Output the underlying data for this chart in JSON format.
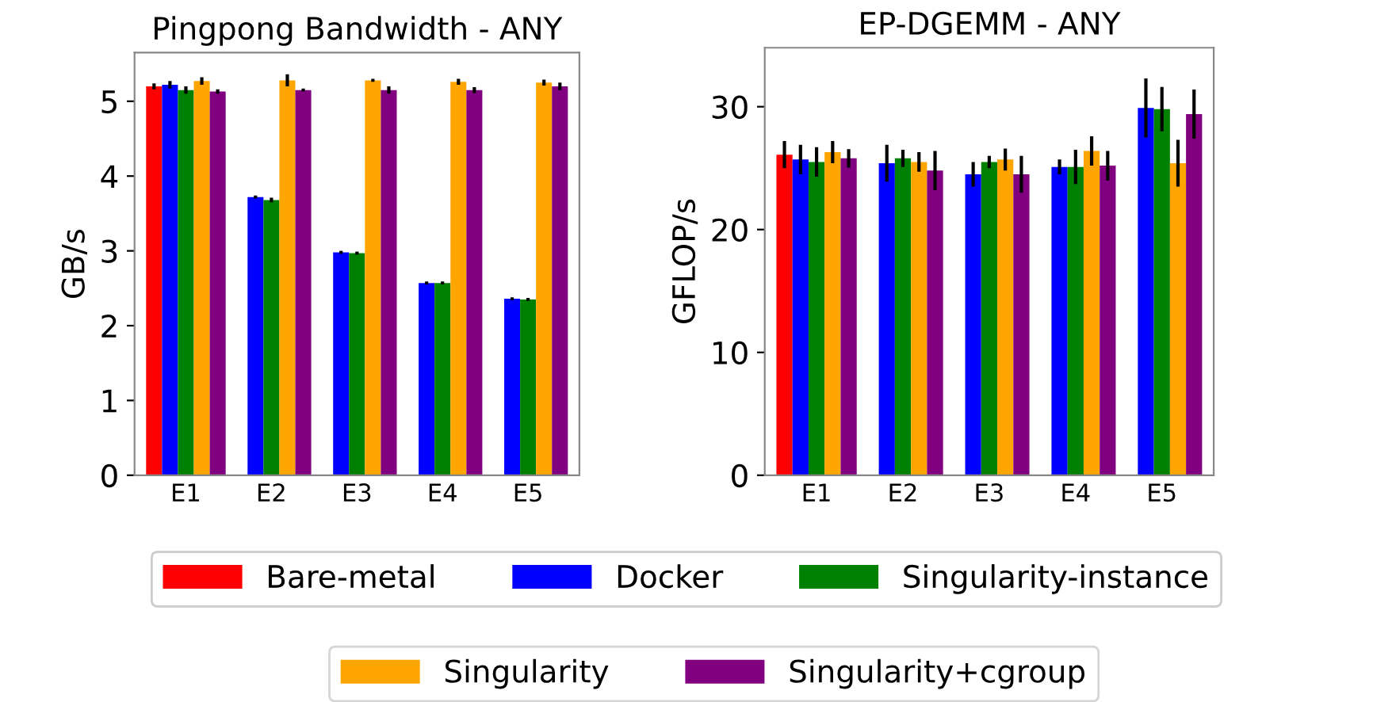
{
  "chart_data": [
    {
      "type": "bar",
      "title": "Pingpong Bandwidth - ANY",
      "ylabel": "GB/s",
      "categories": [
        "E1",
        "E2",
        "E3",
        "E4",
        "E5"
      ],
      "ylim": [
        0,
        5.65
      ],
      "yticks": [
        0,
        1,
        2,
        3,
        4,
        5
      ],
      "grid": false,
      "legend": "bottom",
      "series": [
        {
          "name": "Bare-metal",
          "color": "#ff0000",
          "values": [
            5.2,
            null,
            null,
            null,
            null
          ],
          "errors": [
            0.04,
            null,
            null,
            null,
            null
          ]
        },
        {
          "name": "Docker",
          "color": "#0000ff",
          "values": [
            5.22,
            3.72,
            2.98,
            2.57,
            2.36
          ],
          "errors": [
            0.05,
            0.02,
            0.02,
            0.02,
            0.02
          ]
        },
        {
          "name": "Singularity-instance",
          "color": "#008000",
          "values": [
            5.15,
            3.68,
            2.97,
            2.57,
            2.35
          ],
          "errors": [
            0.05,
            0.03,
            0.02,
            0.02,
            0.02
          ]
        },
        {
          "name": "Singularity",
          "color": "#ffa500",
          "values": [
            5.27,
            5.28,
            5.28,
            5.26,
            5.25
          ],
          "errors": [
            0.05,
            0.08,
            0.02,
            0.04,
            0.04
          ]
        },
        {
          "name": "Singularity+cgroup",
          "color": "#800080",
          "values": [
            5.13,
            5.15,
            5.15,
            5.15,
            5.2
          ],
          "errors": [
            0.03,
            0.02,
            0.05,
            0.04,
            0.05
          ]
        }
      ]
    },
    {
      "type": "bar",
      "title": "EP-DGEMM - ANY",
      "ylabel": "GFLOP/s",
      "categories": [
        "E1",
        "E2",
        "E3",
        "E4",
        "E5"
      ],
      "ylim": [
        0,
        34.8
      ],
      "yticks": [
        0,
        10,
        20,
        30
      ],
      "grid": false,
      "series": [
        {
          "color": "#ff0000",
          "values": [
            26.1,
            null,
            null,
            null,
            null
          ],
          "errors": [
            1.1,
            null,
            null,
            null,
            null
          ]
        },
        {
          "color": "#0000ff",
          "values": [
            25.7,
            25.4,
            24.5,
            25.1,
            29.9
          ],
          "errors": [
            1.2,
            1.5,
            1.0,
            0.6,
            2.4
          ]
        },
        {
          "color": "#008000",
          "values": [
            25.5,
            25.8,
            25.5,
            25.1,
            29.8
          ],
          "errors": [
            1.2,
            0.7,
            0.5,
            1.4,
            1.8
          ]
        },
        {
          "color": "#ffa500",
          "values": [
            26.3,
            25.5,
            25.7,
            26.4,
            25.4
          ],
          "errors": [
            0.9,
            0.8,
            0.9,
            1.2,
            1.9
          ]
        },
        {
          "color": "#800080",
          "values": [
            25.8,
            24.8,
            24.5,
            25.2,
            29.4
          ],
          "errors": [
            0.75,
            1.6,
            1.5,
            1.2,
            2.0
          ]
        }
      ]
    }
  ]
}
